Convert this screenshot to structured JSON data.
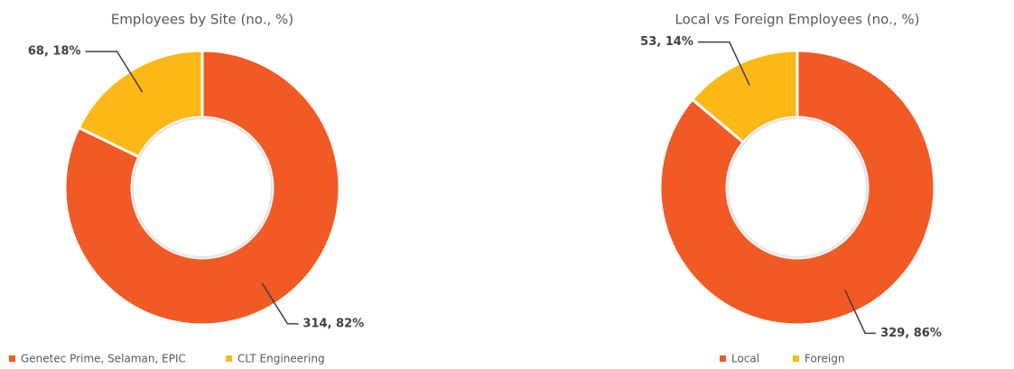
{
  "chart_data": [
    {
      "type": "donut",
      "title": "Employees by Site (no., %)",
      "categories": [
        "Genetec Prime, Selaman, EPIC",
        "CLT Engineering"
      ],
      "values": [
        314,
        68
      ],
      "value_labels": [
        "314, 82%",
        "68, 18%"
      ],
      "colors": [
        "#f15a24",
        "#fbb817"
      ],
      "legend": "bottom"
    },
    {
      "type": "donut",
      "title": "Local vs Foreign Employees (no., %)",
      "categories": [
        "Local",
        "Foreign"
      ],
      "values": [
        329,
        53
      ],
      "value_labels": [
        "329, 86%",
        "53, 14%"
      ],
      "colors": [
        "#f15a24",
        "#fbb817"
      ],
      "legend": "bottom"
    }
  ]
}
